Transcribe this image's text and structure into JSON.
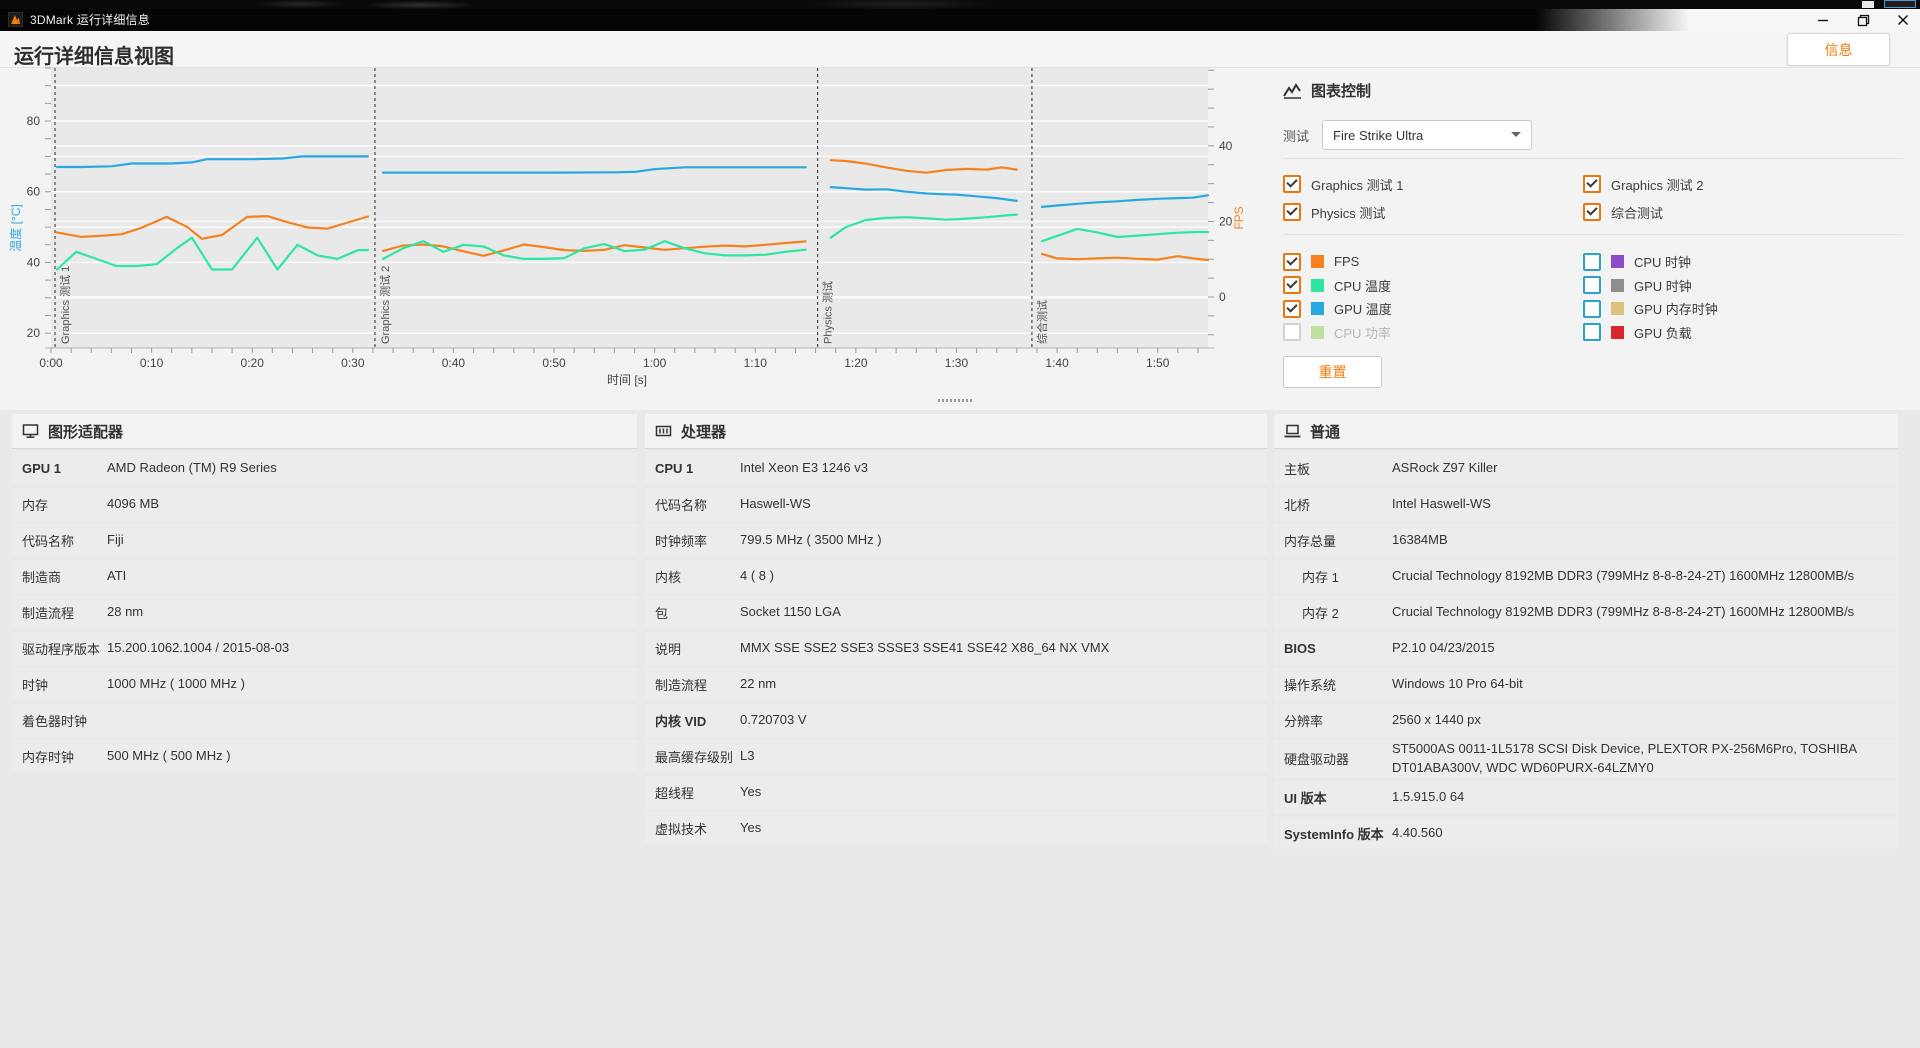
{
  "window": {
    "title": "3DMark 运行详细信息",
    "buttons": {
      "minimize": "minimize",
      "restore": "restore",
      "close": "close"
    }
  },
  "page": {
    "title": "运行详细信息视图",
    "info_button": "信息"
  },
  "chart_controls": {
    "header": "图表控制",
    "test_label": "测试",
    "test_selected": "Fire Strike Ultra",
    "test_checkboxes": [
      {
        "label": "Graphics 测试 1",
        "checked": true
      },
      {
        "label": "Graphics 测试 2",
        "checked": true
      },
      {
        "label": "Physics 测试",
        "checked": true
      },
      {
        "label": "综合测试",
        "checked": true
      }
    ],
    "series_checkboxes": [
      {
        "label": "FPS",
        "checked": true,
        "swatch": "#f5821f"
      },
      {
        "label": "CPU 温度",
        "checked": true,
        "swatch": "#2ee5a2"
      },
      {
        "label": "GPU 温度",
        "checked": true,
        "swatch": "#29a8e0"
      },
      {
        "label": "CPU 功率",
        "checked": false,
        "swatch": "#bfe0a0",
        "disabled": true
      },
      {
        "label": "CPU 时钟",
        "checked": false,
        "swatch": "#8c4bc9"
      },
      {
        "label": "GPU 时钟",
        "checked": false,
        "swatch": "#8e8e8e"
      },
      {
        "label": "GPU 内存时钟",
        "checked": false,
        "swatch": "#ddc27c"
      },
      {
        "label": "GPU 负载",
        "checked": false,
        "swatch": "#d9252e"
      }
    ],
    "reset_button": "重置"
  },
  "chart_data": {
    "type": "line",
    "xlabel": "时间 [s]",
    "x_range_s": [
      0,
      115
    ],
    "x_major_ticks": [
      {
        "t": 0,
        "label": "0:00"
      },
      {
        "t": 10,
        "label": "0:10"
      },
      {
        "t": 20,
        "label": "0:20"
      },
      {
        "t": 30,
        "label": "0:30"
      },
      {
        "t": 40,
        "label": "0:40"
      },
      {
        "t": 50,
        "label": "0:50"
      },
      {
        "t": 60,
        "label": "1:00"
      },
      {
        "t": 70,
        "label": "1:10"
      },
      {
        "t": 80,
        "label": "1:20"
      },
      {
        "t": 90,
        "label": "1:30"
      },
      {
        "t": 100,
        "label": "1:40"
      },
      {
        "t": 110,
        "label": "1:50"
      }
    ],
    "left_axis": {
      "label": "温度 [°C]",
      "color": "#29a8e0",
      "ticks": [
        20,
        40,
        60,
        80
      ],
      "range": [
        15.8,
        95
      ],
      "gridlines": [
        20,
        30,
        40,
        50,
        60,
        70,
        80,
        90
      ]
    },
    "right_axis": {
      "label": "FPS",
      "color": "#f5821f",
      "ticks": [
        0,
        20,
        40
      ],
      "range": [
        -13.5,
        60.6
      ],
      "gridlines": [
        0,
        20,
        40
      ]
    },
    "grid": true,
    "legend_position": "external-checkboxes",
    "sections": [
      {
        "label": "Graphics 测试 1",
        "start_s": 0.4
      },
      {
        "label": "Graphics 测试 2",
        "start_s": 32.2
      },
      {
        "label": "Physics 测试",
        "start_s": 76.2
      },
      {
        "label": "综合测试",
        "start_s": 97.5
      }
    ],
    "series": [
      {
        "name": "FPS",
        "unit": "fps",
        "axis": "right",
        "color": "#f5821f",
        "segments": [
          [
            [
              0.6,
              17.1
            ],
            [
              3,
              15.9
            ],
            [
              5,
              16.2
            ],
            [
              7,
              16.6
            ],
            [
              9,
              18.3
            ],
            [
              11.5,
              21.2
            ],
            [
              13.5,
              18.6
            ],
            [
              15,
              15.4
            ],
            [
              17,
              16.4
            ],
            [
              19.5,
              21.2
            ],
            [
              21.5,
              21.4
            ],
            [
              23.5,
              19.8
            ],
            [
              25.5,
              18.4
            ],
            [
              27.5,
              18.1
            ],
            [
              29.5,
              19.7
            ],
            [
              31.5,
              21.3
            ]
          ],
          [
            [
              33,
              12.2
            ],
            [
              35,
              13.6
            ],
            [
              37,
              13.9
            ],
            [
              39,
              13.4
            ],
            [
              41,
              12.1
            ],
            [
              43,
              10.9
            ],
            [
              45,
              12.3
            ],
            [
              47,
              13.9
            ],
            [
              49,
              13.2
            ],
            [
              51,
              12.4
            ],
            [
              53,
              12.2
            ],
            [
              55,
              12.5
            ],
            [
              57,
              13.7
            ],
            [
              59,
              13.1
            ],
            [
              61,
              12.5
            ],
            [
              63,
              12.9
            ],
            [
              65,
              13.3
            ],
            [
              67,
              13.6
            ],
            [
              69,
              13.4
            ],
            [
              71,
              13.8
            ],
            [
              73,
              14.3
            ],
            [
              75,
              14.7
            ]
          ],
          [
            [
              77.5,
              36.2
            ],
            [
              79,
              36.0
            ],
            [
              81,
              35.3
            ],
            [
              83,
              34.3
            ],
            [
              85,
              33.4
            ],
            [
              87,
              32.9
            ],
            [
              89,
              33.6
            ],
            [
              91,
              33.9
            ],
            [
              93,
              33.7
            ],
            [
              94.5,
              34.3
            ],
            [
              96,
              33.7
            ]
          ],
          [
            [
              98.5,
              11.4
            ],
            [
              100,
              10.2
            ],
            [
              102,
              10.0
            ],
            [
              104,
              10.2
            ],
            [
              106,
              10.4
            ],
            [
              108,
              10.1
            ],
            [
              110,
              9.9
            ],
            [
              112,
              10.8
            ],
            [
              113.5,
              10.2
            ],
            [
              115,
              9.8
            ]
          ]
        ]
      },
      {
        "name": "CPU 温度",
        "unit": "°C",
        "axis": "left",
        "color": "#2ee5a2",
        "segments": [
          [
            [
              0.6,
              38
            ],
            [
              2.5,
              43
            ],
            [
              4.5,
              41
            ],
            [
              6.5,
              39
            ],
            [
              8.5,
              39
            ],
            [
              10.5,
              39.5
            ],
            [
              12.5,
              44
            ],
            [
              14,
              47
            ],
            [
              16,
              38
            ],
            [
              18,
              38
            ],
            [
              20.5,
              47
            ],
            [
              22.5,
              38
            ],
            [
              24.5,
              45
            ],
            [
              26.5,
              42
            ],
            [
              28.5,
              41
            ],
            [
              30.5,
              43.5
            ],
            [
              31.5,
              43.5
            ]
          ],
          [
            [
              33,
              41
            ],
            [
              35,
              44
            ],
            [
              37,
              46
            ],
            [
              39,
              43
            ],
            [
              41,
              45
            ],
            [
              43,
              44.5
            ],
            [
              45,
              42
            ],
            [
              47,
              41
            ],
            [
              49,
              41
            ],
            [
              51,
              41.2
            ],
            [
              53,
              44
            ],
            [
              55,
              45.2
            ],
            [
              57,
              43.2
            ],
            [
              59,
              43.6
            ],
            [
              61,
              46
            ],
            [
              63,
              44
            ],
            [
              65,
              42.6
            ],
            [
              67,
              42
            ],
            [
              69,
              42
            ],
            [
              71,
              42.2
            ],
            [
              73,
              43
            ],
            [
              75,
              43.6
            ]
          ],
          [
            [
              77.5,
              47
            ],
            [
              79,
              50
            ],
            [
              81,
              52
            ],
            [
              83,
              52.6
            ],
            [
              85,
              52.8
            ],
            [
              87,
              52.5
            ],
            [
              89,
              52.1
            ],
            [
              91,
              52.4
            ],
            [
              93,
              52.8
            ],
            [
              95,
              53.3
            ],
            [
              96,
              53.5
            ]
          ],
          [
            [
              98.5,
              46
            ],
            [
              100,
              47.5
            ],
            [
              102,
              49.5
            ],
            [
              104,
              48.5
            ],
            [
              106,
              47.2
            ],
            [
              108,
              47.6
            ],
            [
              110,
              48
            ],
            [
              112,
              48.4
            ],
            [
              114,
              48.6
            ],
            [
              115,
              48.6
            ]
          ]
        ]
      },
      {
        "name": "GPU 温度",
        "unit": "°C",
        "axis": "left",
        "color": "#29a8e0",
        "segments": [
          [
            [
              0.6,
              67
            ],
            [
              3,
              67
            ],
            [
              6,
              67.2
            ],
            [
              8,
              68
            ],
            [
              12,
              68
            ],
            [
              14,
              68.3
            ],
            [
              15.5,
              69.2
            ],
            [
              20,
              69.2
            ],
            [
              23,
              69.4
            ],
            [
              25,
              70
            ],
            [
              28,
              70
            ],
            [
              31.5,
              70
            ]
          ],
          [
            [
              33,
              65.4
            ],
            [
              38,
              65.4
            ],
            [
              44,
              65.4
            ],
            [
              50,
              65.4
            ],
            [
              56,
              65.5
            ],
            [
              58,
              65.6
            ],
            [
              60,
              66.4
            ],
            [
              63,
              66.9
            ],
            [
              68,
              66.9
            ],
            [
              72,
              66.9
            ],
            [
              75,
              66.9
            ]
          ],
          [
            [
              77.5,
              61.3
            ],
            [
              79,
              61
            ],
            [
              81,
              60.6
            ],
            [
              83,
              60.7
            ],
            [
              85,
              60
            ],
            [
              87,
              59.5
            ],
            [
              88.5,
              59.3
            ],
            [
              90,
              59.2
            ],
            [
              92,
              58.7
            ],
            [
              94,
              58.2
            ],
            [
              96,
              57.4
            ]
          ],
          [
            [
              98.5,
              55.7
            ],
            [
              100,
              56.1
            ],
            [
              102,
              56.6
            ],
            [
              104,
              57
            ],
            [
              106,
              57.3
            ],
            [
              108,
              57.7
            ],
            [
              110,
              58
            ],
            [
              112,
              58.2
            ],
            [
              113.5,
              58.3
            ],
            [
              115,
              59
            ]
          ]
        ]
      }
    ]
  },
  "panels": [
    {
      "icon": "monitor-icon",
      "title": "图形适配器",
      "rows": [
        {
          "label": "GPU 1",
          "value": "AMD Radeon (TM) R9 Series",
          "bold": true
        },
        {
          "label": "内存",
          "value": "4096 MB"
        },
        {
          "label": "代码名称",
          "value": "Fiji"
        },
        {
          "label": "制造商",
          "value": "ATI"
        },
        {
          "label": "制造流程",
          "value": "28 nm"
        },
        {
          "label": "驱动程序版本",
          "value": "15.200.1062.1004 / 2015-08-03"
        },
        {
          "label": "时钟",
          "value": "1000 MHz ( 1000 MHz )"
        },
        {
          "label": "着色器时钟",
          "value": ""
        },
        {
          "label": "内存时钟",
          "value": "500 MHz ( 500 MHz )"
        }
      ]
    },
    {
      "icon": "cpu-icon",
      "title": "处理器",
      "rows": [
        {
          "label": "CPU 1",
          "value": "Intel Xeon E3 1246 v3",
          "bold": true
        },
        {
          "label": "代码名称",
          "value": "Haswell-WS"
        },
        {
          "label": "时钟频率",
          "value": "799.5 MHz ( 3500 MHz )"
        },
        {
          "label": "内核",
          "value": "4 ( 8 )"
        },
        {
          "label": "包",
          "value": "Socket 1150 LGA"
        },
        {
          "label": "说明",
          "value": "MMX SSE SSE2 SSE3 SSSE3 SSE41 SSE42 X86_64 NX VMX"
        },
        {
          "label": "制造流程",
          "value": "22 nm"
        },
        {
          "label": "内核 VID",
          "value": "0.720703 V",
          "bold": true
        },
        {
          "label": "最高缓存级别",
          "value": "L3"
        },
        {
          "label": "超线程",
          "value": "Yes"
        },
        {
          "label": "虚拟技术",
          "value": "Yes"
        }
      ]
    },
    {
      "icon": "laptop-icon",
      "title": "普通",
      "rows": [
        {
          "label": "主板",
          "value": "ASRock Z97 Killer"
        },
        {
          "label": "北桥",
          "value": "Intel Haswell-WS"
        },
        {
          "label": "内存总量",
          "value": "16384MB"
        },
        {
          "label": "内存 1",
          "value": "Crucial Technology 8192MB  DDR3 (799MHz 8-8-8-24-2T) 1600MHz 12800MB/s",
          "indent": true
        },
        {
          "label": "内存 2",
          "value": "Crucial Technology 8192MB  DDR3 (799MHz 8-8-8-24-2T) 1600MHz 12800MB/s",
          "indent": true
        },
        {
          "label": "BIOS",
          "value": "P2.10 04/23/2015",
          "bold": true
        },
        {
          "label": "操作系统",
          "value": "Windows 10 Pro 64-bit"
        },
        {
          "label": "分辨率",
          "value": "2560 x 1440 px"
        },
        {
          "label": "硬盘驱动器",
          "value": "ST5000AS 0011-1L5178 SCSI Disk Device, PLEXTOR PX-256M6Pro, TOSHIBA DT01ABA300V, WDC WD60PURX-64LZMY0"
        },
        {
          "label": "UI 版本",
          "value": "1.5.915.0 64",
          "bold": true
        },
        {
          "label": "SystemInfo 版本",
          "value": "4.40.560",
          "bold": true
        }
      ]
    }
  ]
}
